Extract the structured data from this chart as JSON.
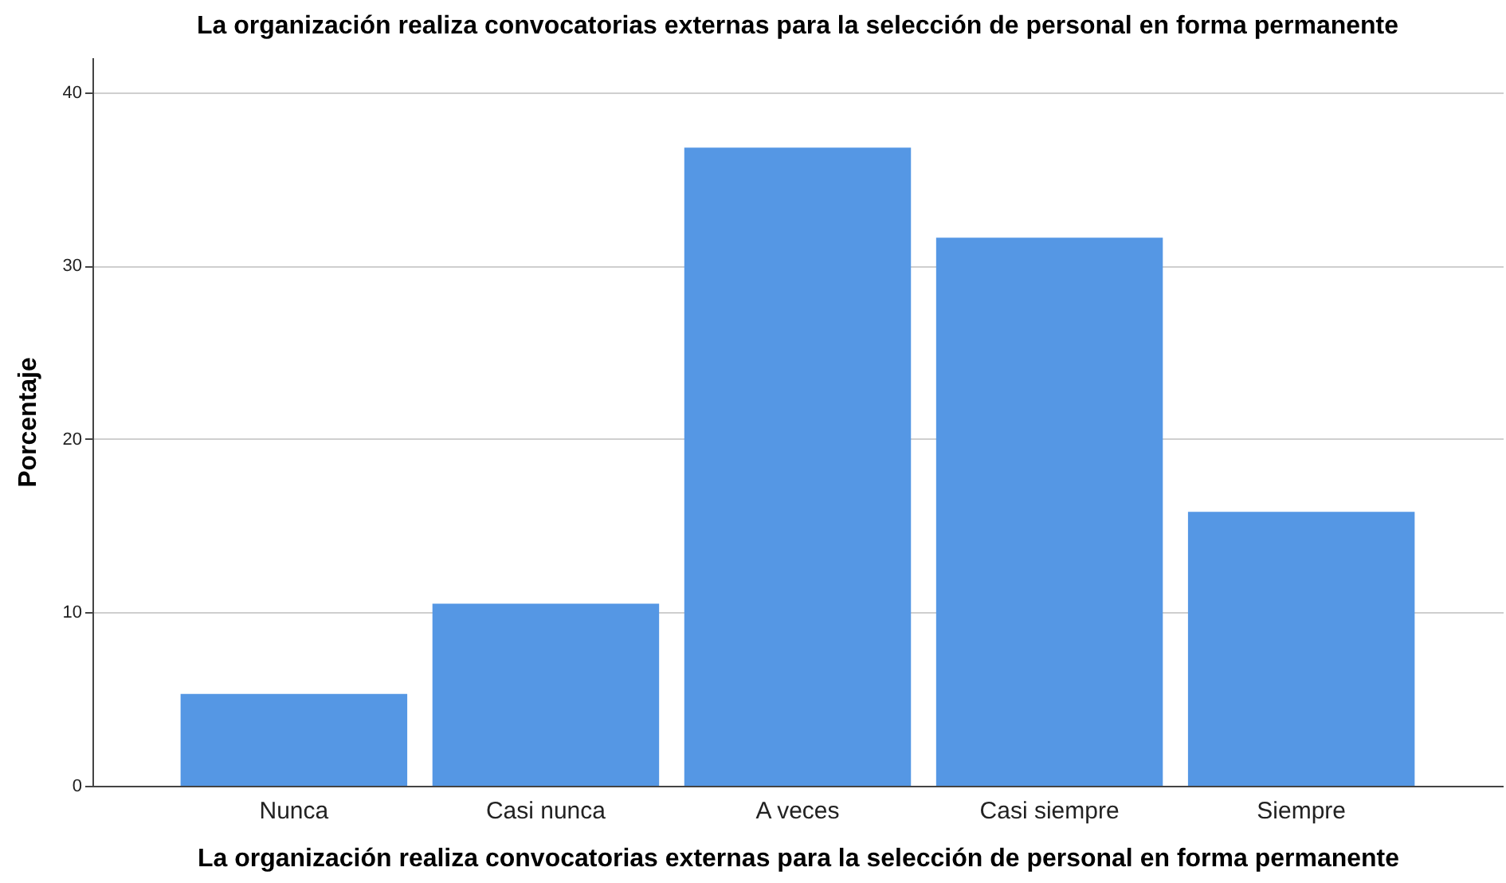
{
  "chart_data": {
    "type": "bar",
    "title": "La organización realiza convocatorias externas para la selección de personal en forma permanente",
    "xlabel": "La organización realiza convocatorias externas para la selección de personal en forma permanente",
    "ylabel": "Porcentaje",
    "categories": [
      "Nunca",
      "Casi nunca",
      "A veces",
      "Casi siempre",
      "Siempre"
    ],
    "values": [
      5.3,
      10.5,
      36.8,
      31.6,
      15.8
    ],
    "color": "#5597e4",
    "ylim": [
      0,
      42
    ],
    "yticks": [
      0,
      10,
      20,
      30,
      40
    ],
    "grid": "y"
  }
}
